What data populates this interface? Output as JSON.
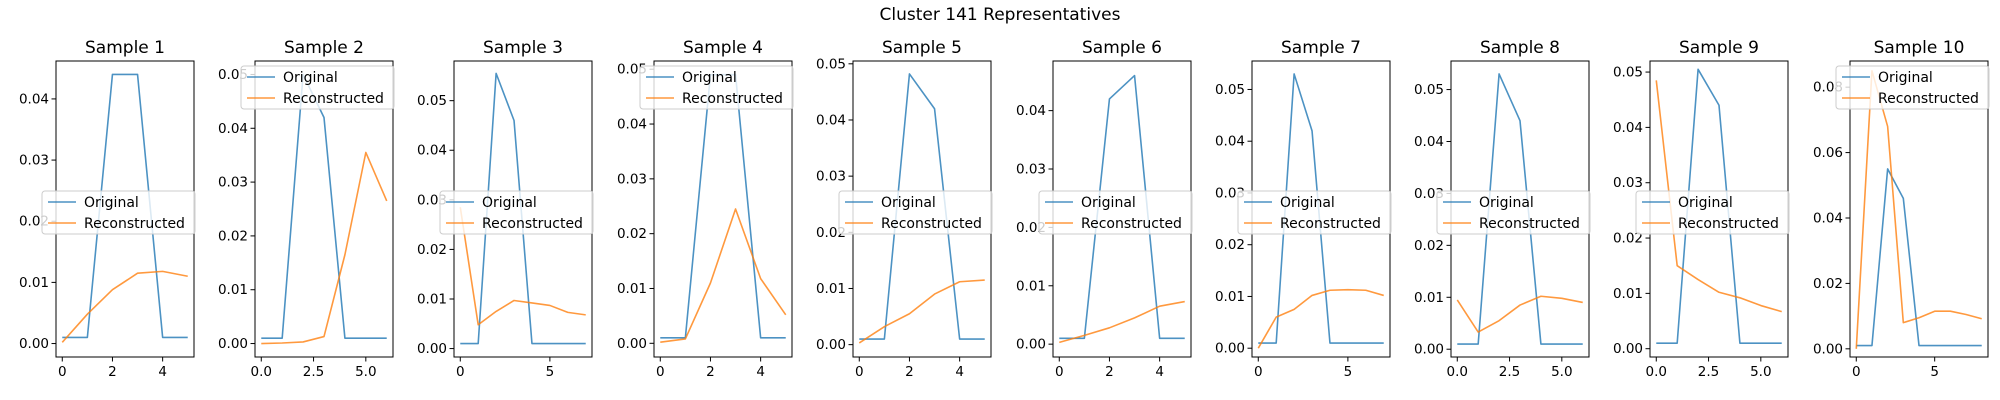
{
  "suptitle": "Cluster 141 Representatives",
  "legend_labels": [
    "Original",
    "Reconstructed"
  ],
  "colors": {
    "original": "#1f77b4",
    "reconstructed": "#ff7f0e",
    "axes": "#000000",
    "background": "#ffffff"
  },
  "chart_data": [
    {
      "type": "line",
      "title": "Sample 1",
      "legend_position": "center-left",
      "xlim": [
        -0.25,
        5.25
      ],
      "ylim": [
        -0.0022,
        0.0462
      ],
      "xticks": [
        0,
        2,
        4
      ],
      "xtick_labels": [
        "0",
        "2",
        "4"
      ],
      "yticks": [
        0,
        0.01,
        0.02,
        0.03,
        0.04
      ],
      "ytick_labels": [
        "0.00",
        "0.01",
        "0.02",
        "0.03",
        "0.04"
      ],
      "series": [
        {
          "name": "Original",
          "x": [
            0,
            1,
            2,
            3,
            4,
            5
          ],
          "y": [
            0.001,
            0.001,
            0.044,
            0.044,
            0.001,
            0.001
          ]
        },
        {
          "name": "Reconstructed",
          "x": [
            0,
            1,
            2,
            3,
            4,
            5
          ],
          "y": [
            0.0002,
            0.0048,
            0.0088,
            0.0115,
            0.0118,
            0.011
          ]
        }
      ]
    },
    {
      "type": "line",
      "title": "Sample 2",
      "legend_position": "top-left",
      "xlim": [
        -0.3,
        6.3
      ],
      "ylim": [
        -0.0025,
        0.0525
      ],
      "xticks": [
        0,
        2.5,
        5
      ],
      "xtick_labels": [
        "0.0",
        "2.5",
        "5.0"
      ],
      "yticks": [
        0,
        0.01,
        0.02,
        0.03,
        0.04,
        0.05
      ],
      "ytick_labels": [
        "0.00",
        "0.01",
        "0.02",
        "0.03",
        "0.04",
        "0.05"
      ],
      "series": [
        {
          "name": "Original",
          "x": [
            0,
            1,
            2,
            3,
            4,
            5,
            6
          ],
          "y": [
            0.001,
            0.001,
            0.05,
            0.042,
            0.001,
            0.001,
            0.001
          ]
        },
        {
          "name": "Reconstructed",
          "x": [
            0,
            1,
            2,
            3,
            4,
            5,
            6
          ],
          "y": [
            0,
            0.0001,
            0.0003,
            0.0013,
            0.0165,
            0.0355,
            0.0265
          ]
        }
      ]
    },
    {
      "type": "line",
      "title": "Sample 3",
      "legend_position": "center-left",
      "xlim": [
        -0.35,
        7.35
      ],
      "ylim": [
        -0.0017,
        0.058
      ],
      "xticks": [
        0,
        5
      ],
      "xtick_labels": [
        "0",
        "5"
      ],
      "yticks": [
        0,
        0.01,
        0.02,
        0.03,
        0.04,
        0.05
      ],
      "ytick_labels": [
        "0.00",
        "0.01",
        "0.02",
        "0.03",
        "0.04",
        "0.05"
      ],
      "series": [
        {
          "name": "Original",
          "x": [
            0,
            1,
            2,
            3,
            4,
            5,
            6,
            7
          ],
          "y": [
            0.001,
            0.001,
            0.0555,
            0.046,
            0.001,
            0.001,
            0.001,
            0.001
          ]
        },
        {
          "name": "Reconstructed",
          "x": [
            0,
            1,
            2,
            3,
            4,
            5,
            6,
            7
          ],
          "y": [
            0.0285,
            0.0048,
            0.0075,
            0.0097,
            0.0092,
            0.0087,
            0.0073,
            0.0068
          ]
        }
      ]
    },
    {
      "type": "line",
      "title": "Sample 4",
      "legend_position": "top-left",
      "xlim": [
        -0.25,
        5.25
      ],
      "ylim": [
        -0.0025,
        0.0515
      ],
      "xticks": [
        0,
        2,
        4
      ],
      "xtick_labels": [
        "0",
        "2",
        "4"
      ],
      "yticks": [
        0,
        0.01,
        0.02,
        0.03,
        0.04,
        0.05
      ],
      "ytick_labels": [
        "0.00",
        "0.01",
        "0.02",
        "0.03",
        "0.04",
        "0.05"
      ],
      "series": [
        {
          "name": "Original",
          "x": [
            0,
            1,
            2,
            3,
            4,
            5
          ],
          "y": [
            0.001,
            0.001,
            0.049,
            0.049,
            0.001,
            0.001
          ]
        },
        {
          "name": "Reconstructed",
          "x": [
            0,
            1,
            2,
            3,
            4,
            5
          ],
          "y": [
            0.0002,
            0.0008,
            0.011,
            0.0245,
            0.0118,
            0.0052
          ]
        }
      ]
    },
    {
      "type": "line",
      "title": "Sample 5",
      "legend_position": "center-left",
      "xlim": [
        -0.25,
        5.25
      ],
      "ylim": [
        -0.0022,
        0.0505
      ],
      "xticks": [
        0,
        2,
        4
      ],
      "xtick_labels": [
        "0",
        "2",
        "4"
      ],
      "yticks": [
        0,
        0.01,
        0.02,
        0.03,
        0.04,
        0.05
      ],
      "ytick_labels": [
        "0.00",
        "0.01",
        "0.02",
        "0.03",
        "0.04",
        "0.05"
      ],
      "series": [
        {
          "name": "Original",
          "x": [
            0,
            1,
            2,
            3,
            4,
            5
          ],
          "y": [
            0.001,
            0.001,
            0.0482,
            0.042,
            0.001,
            0.001
          ]
        },
        {
          "name": "Reconstructed",
          "x": [
            0,
            1,
            2,
            3,
            4,
            5
          ],
          "y": [
            0.0003,
            0.0032,
            0.0055,
            0.009,
            0.0112,
            0.0115
          ]
        }
      ]
    },
    {
      "type": "line",
      "title": "Sample 6",
      "legend_position": "center-left",
      "xlim": [
        -0.25,
        5.25
      ],
      "ylim": [
        -0.0022,
        0.0485
      ],
      "xticks": [
        0,
        2,
        4
      ],
      "xtick_labels": [
        "0",
        "2",
        "4"
      ],
      "yticks": [
        0,
        0.01,
        0.02,
        0.03,
        0.04
      ],
      "ytick_labels": [
        "0.00",
        "0.01",
        "0.02",
        "0.03",
        "0.04"
      ],
      "series": [
        {
          "name": "Original",
          "x": [
            0,
            1,
            2,
            3,
            4,
            5
          ],
          "y": [
            0.001,
            0.001,
            0.042,
            0.046,
            0.001,
            0.001
          ]
        },
        {
          "name": "Reconstructed",
          "x": [
            0,
            1,
            2,
            3,
            4,
            5
          ],
          "y": [
            0.0003,
            0.0015,
            0.0028,
            0.0045,
            0.0065,
            0.0073
          ]
        }
      ]
    },
    {
      "type": "line",
      "title": "Sample 7",
      "legend_position": "center-left",
      "xlim": [
        -0.35,
        7.35
      ],
      "ylim": [
        -0.0017,
        0.0555
      ],
      "xticks": [
        0,
        5
      ],
      "xtick_labels": [
        "0",
        "5"
      ],
      "yticks": [
        0,
        0.01,
        0.02,
        0.03,
        0.04,
        0.05
      ],
      "ytick_labels": [
        "0.00",
        "0.01",
        "0.02",
        "0.03",
        "0.04",
        "0.05"
      ],
      "series": [
        {
          "name": "Original",
          "x": [
            0,
            1,
            2,
            3,
            4,
            5,
            6,
            7
          ],
          "y": [
            0.001,
            0.001,
            0.053,
            0.042,
            0.001,
            0.001,
            0.001,
            0.001
          ]
        },
        {
          "name": "Reconstructed",
          "x": [
            0,
            1,
            2,
            3,
            4,
            5,
            6,
            7
          ],
          "y": [
            0,
            0.006,
            0.0075,
            0.0102,
            0.0112,
            0.0113,
            0.0112,
            0.0102
          ]
        }
      ]
    },
    {
      "type": "line",
      "title": "Sample 8",
      "legend_position": "center-left",
      "xlim": [
        -0.3,
        6.3
      ],
      "ylim": [
        -0.0015,
        0.0555
      ],
      "xticks": [
        0,
        2.5,
        5
      ],
      "xtick_labels": [
        "0.0",
        "2.5",
        "5.0"
      ],
      "yticks": [
        0,
        0.01,
        0.02,
        0.03,
        0.04,
        0.05
      ],
      "ytick_labels": [
        "0.00",
        "0.01",
        "0.02",
        "0.03",
        "0.04",
        "0.05"
      ],
      "series": [
        {
          "name": "Original",
          "x": [
            0,
            1,
            2,
            3,
            4,
            5,
            6
          ],
          "y": [
            0.001,
            0.001,
            0.053,
            0.044,
            0.001,
            0.001,
            0.001
          ]
        },
        {
          "name": "Reconstructed",
          "x": [
            0,
            1,
            2,
            3,
            4,
            5,
            6
          ],
          "y": [
            0.0095,
            0.0033,
            0.0055,
            0.0085,
            0.0102,
            0.0098,
            0.009
          ]
        }
      ]
    },
    {
      "type": "line",
      "title": "Sample 9",
      "legend_position": "center-left",
      "xlim": [
        -0.3,
        6.3
      ],
      "ylim": [
        -0.0015,
        0.052
      ],
      "xticks": [
        0,
        2.5,
        5
      ],
      "xtick_labels": [
        "0.0",
        "2.5",
        "5.0"
      ],
      "yticks": [
        0,
        0.01,
        0.02,
        0.03,
        0.04,
        0.05
      ],
      "ytick_labels": [
        "0.00",
        "0.01",
        "0.02",
        "0.03",
        "0.04",
        "0.05"
      ],
      "series": [
        {
          "name": "Original",
          "x": [
            0,
            1,
            2,
            3,
            4,
            5,
            6
          ],
          "y": [
            0.001,
            0.001,
            0.0505,
            0.044,
            0.001,
            0.001,
            0.001
          ]
        },
        {
          "name": "Reconstructed",
          "x": [
            0,
            1,
            2,
            3,
            4,
            5,
            6
          ],
          "y": [
            0.0485,
            0.015,
            0.0125,
            0.0102,
            0.0092,
            0.0078,
            0.0067
          ]
        }
      ]
    },
    {
      "type": "line",
      "title": "Sample 10",
      "legend_position": "top-left",
      "xlim": [
        -0.4,
        8.4
      ],
      "ylim": [
        -0.0025,
        0.088
      ],
      "xticks": [
        0,
        5
      ],
      "xtick_labels": [
        "0",
        "5"
      ],
      "yticks": [
        0,
        0.02,
        0.04,
        0.06,
        0.08
      ],
      "ytick_labels": [
        "0.00",
        "0.02",
        "0.04",
        "0.06",
        "0.08"
      ],
      "series": [
        {
          "name": "Original",
          "x": [
            0,
            1,
            2,
            3,
            4,
            5,
            6,
            7,
            8
          ],
          "y": [
            0.001,
            0.001,
            0.055,
            0.046,
            0.001,
            0.001,
            0.001,
            0.001,
            0.001
          ]
        },
        {
          "name": "Reconstructed",
          "x": [
            0,
            1,
            2,
            3,
            4,
            5,
            6,
            7,
            8
          ],
          "y": [
            0,
            0.085,
            0.068,
            0.008,
            0.0095,
            0.0115,
            0.0115,
            0.0105,
            0.0092
          ]
        }
      ]
    }
  ]
}
